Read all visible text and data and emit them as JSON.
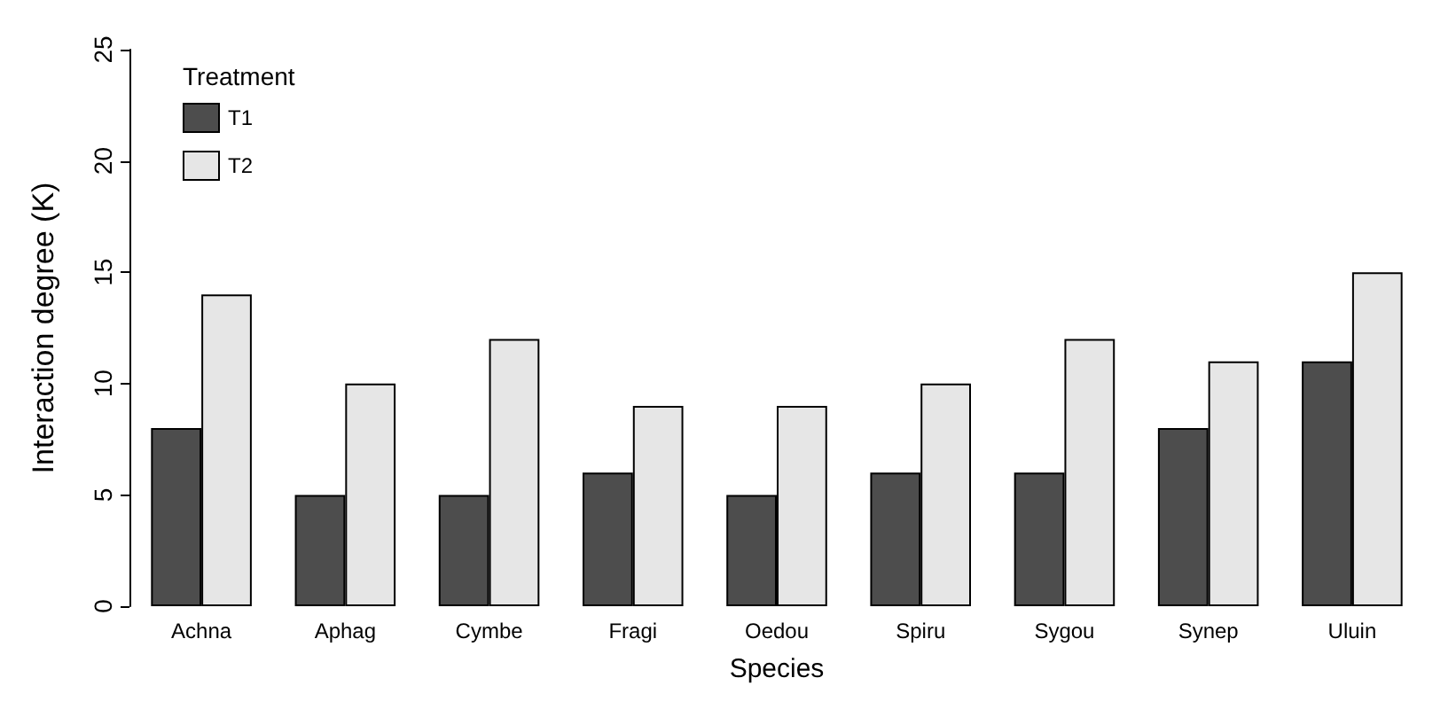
{
  "chart_data": {
    "type": "bar",
    "xlabel": "Species",
    "ylabel": "Interaction degree (K)",
    "legend_title": "Treatment",
    "categories": [
      "Achna",
      "Aphag",
      "Cymbe",
      "Fragi",
      "Oedou",
      "Spiru",
      "Sygou",
      "Synep",
      "Uluin"
    ],
    "series": [
      {
        "name": "T1",
        "color": "#4d4d4d",
        "values": [
          8,
          5,
          5,
          6,
          5,
          6,
          6,
          8,
          11
        ]
      },
      {
        "name": "T2",
        "color": "#e6e6e6",
        "values": [
          14,
          10,
          12,
          9,
          9,
          10,
          12,
          11,
          15
        ]
      }
    ],
    "ylim": [
      0,
      25
    ],
    "yticks": [
      0,
      5,
      10,
      15,
      20,
      25
    ],
    "grid": false,
    "legend": "top left"
  }
}
